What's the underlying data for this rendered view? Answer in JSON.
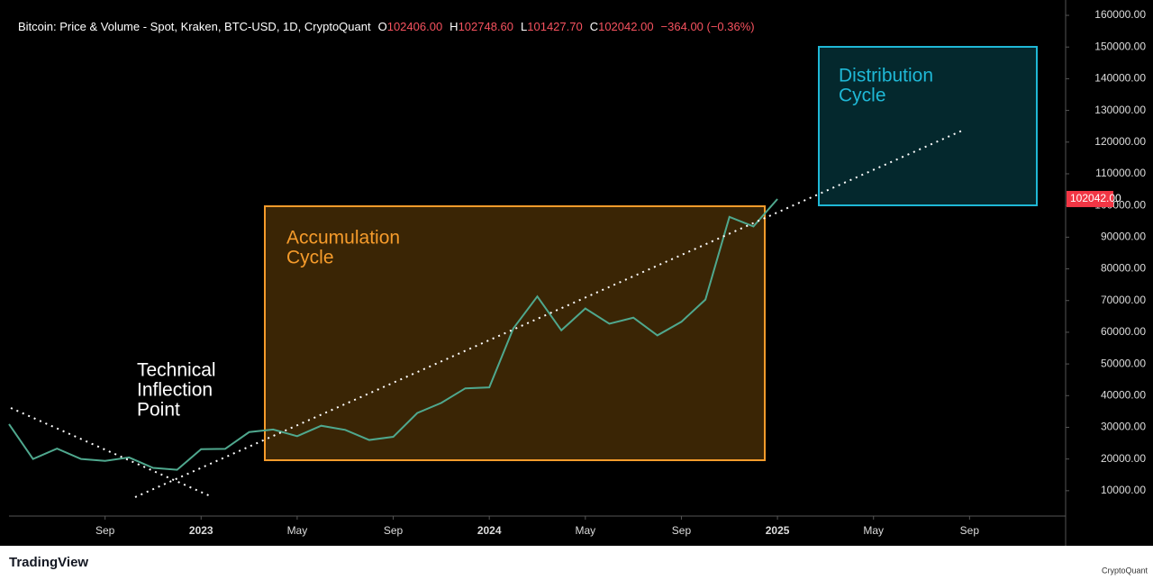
{
  "chart_data": {
    "type": "line",
    "title": "Bitcoin: Price & Volume - Spot, Kraken, BTC-USD, 1D, CryptoQuant",
    "ohlc": {
      "labels": [
        "O",
        "H",
        "L",
        "C"
      ],
      "values": [
        102406,
        102748.6,
        101427.7,
        102042
      ],
      "value_labels": [
        "102406.00",
        "102748.60",
        "101427.70",
        "102042.00"
      ]
    },
    "change": "−364.00 (−0.36%)",
    "x": [
      "2022-05",
      "2022-06",
      "2022-07",
      "2022-08",
      "2022-09",
      "2022-10",
      "2022-11",
      "2022-12",
      "2023-01",
      "2023-02",
      "2023-03",
      "2023-04",
      "2023-05",
      "2023-06",
      "2023-07",
      "2023-08",
      "2023-09",
      "2023-10",
      "2023-11",
      "2023-12",
      "2024-01",
      "2024-02",
      "2024-03",
      "2024-04",
      "2024-05",
      "2024-06",
      "2024-07",
      "2024-08",
      "2024-09",
      "2024-10",
      "2024-11",
      "2024-12",
      "2025-01"
    ],
    "values": [
      31000,
      20000,
      23300,
      20000,
      19400,
      20500,
      17200,
      16600,
      23100,
      23200,
      28500,
      29300,
      27200,
      30500,
      29200,
      26000,
      27000,
      34500,
      37700,
      42300,
      42600,
      61200,
      71300,
      60600,
      67500,
      62700,
      64600,
      59000,
      63300,
      70300,
      96400,
      93400,
      102042
    ],
    "color": "#4fa88e",
    "xlim": [
      "2022-05",
      "2026-01"
    ],
    "xticks": [
      {
        "value": "2022-09",
        "label": "Sep"
      },
      {
        "value": "2023-01",
        "label": "2023"
      },
      {
        "value": "2023-05",
        "label": "May"
      },
      {
        "value": "2023-09",
        "label": "Sep"
      },
      {
        "value": "2024-01",
        "label": "2024"
      },
      {
        "value": "2024-05",
        "label": "May"
      },
      {
        "value": "2024-09",
        "label": "Sep"
      },
      {
        "value": "2025-01",
        "label": "2025"
      },
      {
        "value": "2025-05",
        "label": "May"
      },
      {
        "value": "2025-09",
        "label": "Sep"
      }
    ],
    "ylim": [
      2000,
      162000
    ],
    "yticks": [
      {
        "value": 10000,
        "label": "10000.00"
      },
      {
        "value": 20000,
        "label": "20000.00"
      },
      {
        "value": 30000,
        "label": "30000.00"
      },
      {
        "value": 40000,
        "label": "40000.00"
      },
      {
        "value": 50000,
        "label": "50000.00"
      },
      {
        "value": 60000,
        "label": "60000.00"
      },
      {
        "value": 70000,
        "label": "70000.00"
      },
      {
        "value": 80000,
        "label": "80000.00"
      },
      {
        "value": 90000,
        "label": "90000.00"
      },
      {
        "value": 100000,
        "label": "100000.00"
      },
      {
        "value": 110000,
        "label": "110000.00"
      },
      {
        "value": 120000,
        "label": "120000.00"
      },
      {
        "value": 130000,
        "label": "130000.00"
      },
      {
        "value": 140000,
        "label": "140000.00"
      },
      {
        "value": 150000,
        "label": "150000.00"
      },
      {
        "value": 160000,
        "label": "160000.00"
      }
    ],
    "last_price": {
      "value": 102042,
      "label": "102042.00"
    },
    "annotations": {
      "technical": [
        "Technical",
        "Inflection",
        "Point"
      ],
      "accumulation": [
        "Accumulation",
        "Cycle"
      ],
      "distribution": [
        "Distribution",
        "Cycle"
      ]
    },
    "branding": {
      "left": "TradingView",
      "right": "CryptoQuant"
    }
  }
}
